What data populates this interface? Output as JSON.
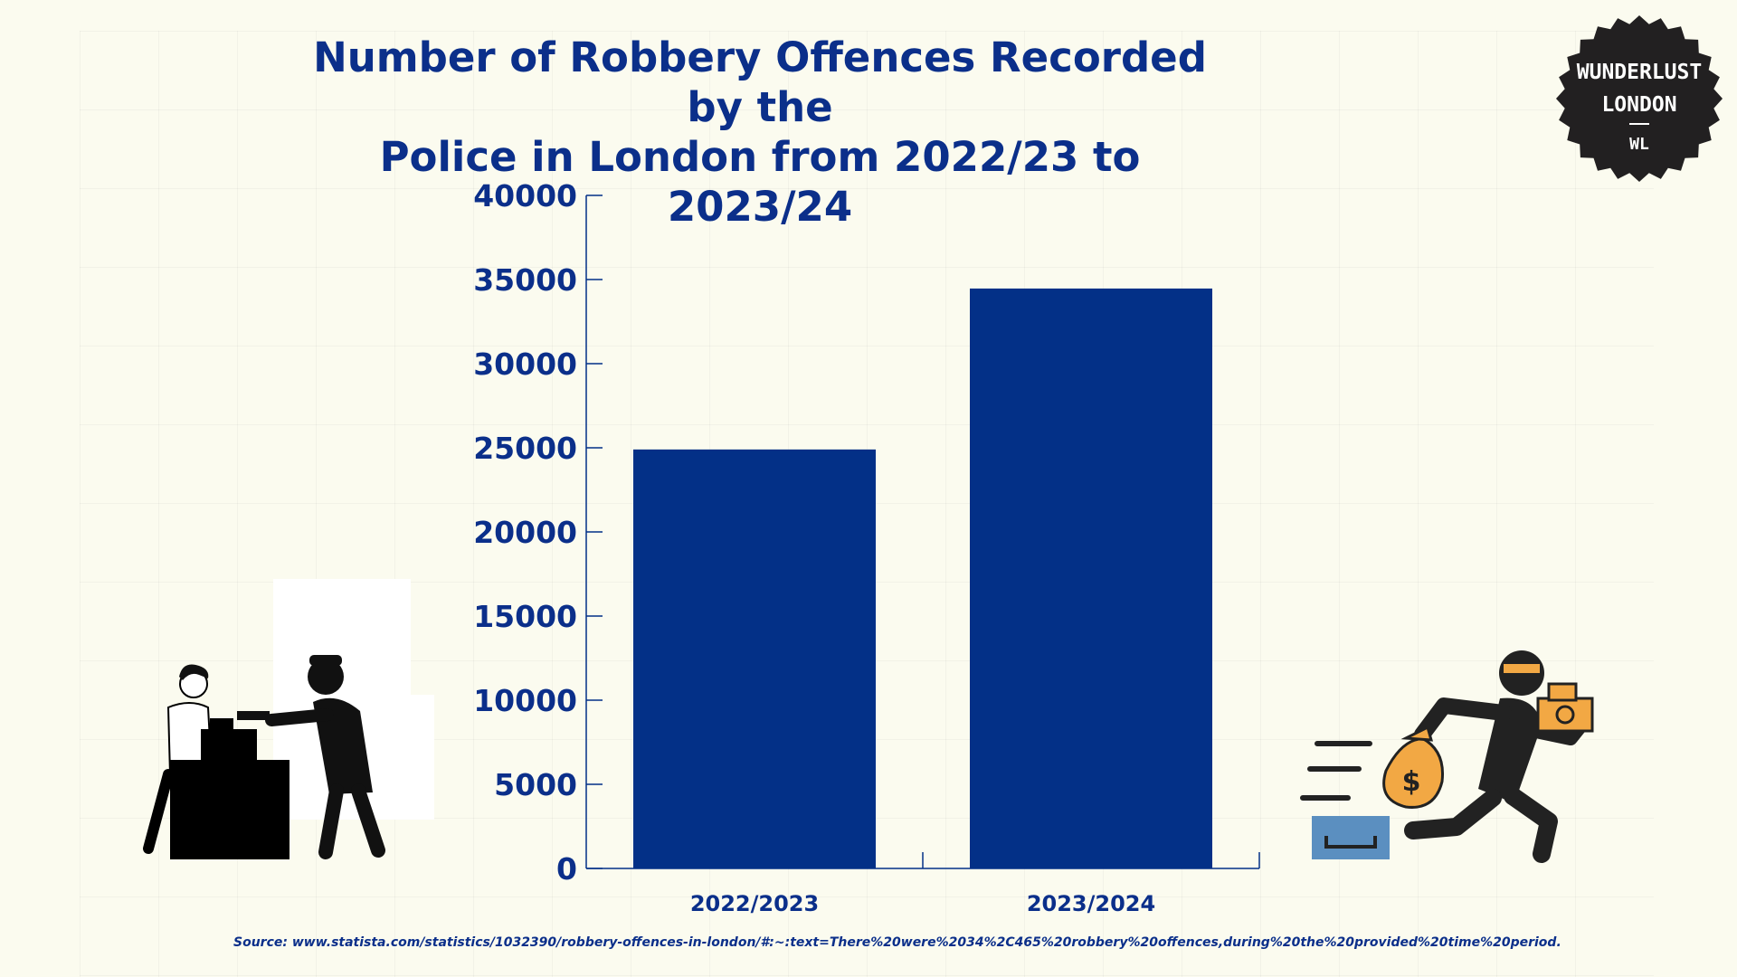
{
  "title_lines": [
    "Number of Robbery Offences Recorded by the",
    "Police in London from 2022/23 to 2023/24"
  ],
  "badge": {
    "line1": "WUNDERLUST",
    "line2": "LONDON",
    "line3": "WL"
  },
  "source": "Source: www.statista.com/statistics/1032390/robbery-offences-in-london/#:~:text=There%20were%2034%2C465%20robbery%20offences,during%20the%20provided%20time%20period.",
  "colors": {
    "bar": "#033087",
    "text": "#0b2f8a",
    "background": "#fbfbef",
    "badge": "#222021",
    "money": "#f2a844",
    "box": "#5b8fc0"
  },
  "icons": [
    "shop-robbery-illustration",
    "running-thief-illustration"
  ],
  "chart_data": {
    "type": "bar",
    "title": "Number of Robbery Offences Recorded by the Police in London from 2022/23 to 2023/24",
    "xlabel": "",
    "ylabel": "",
    "categories": [
      "2022/2023",
      "2023/2024"
    ],
    "values": [
      24900,
      34465
    ],
    "ylim": [
      0,
      40000
    ],
    "yticks": [
      "0",
      "5000",
      "10000",
      "15000",
      "20000",
      "25000",
      "30000",
      "35000",
      "40000"
    ],
    "grid": false,
    "legend": "none"
  }
}
